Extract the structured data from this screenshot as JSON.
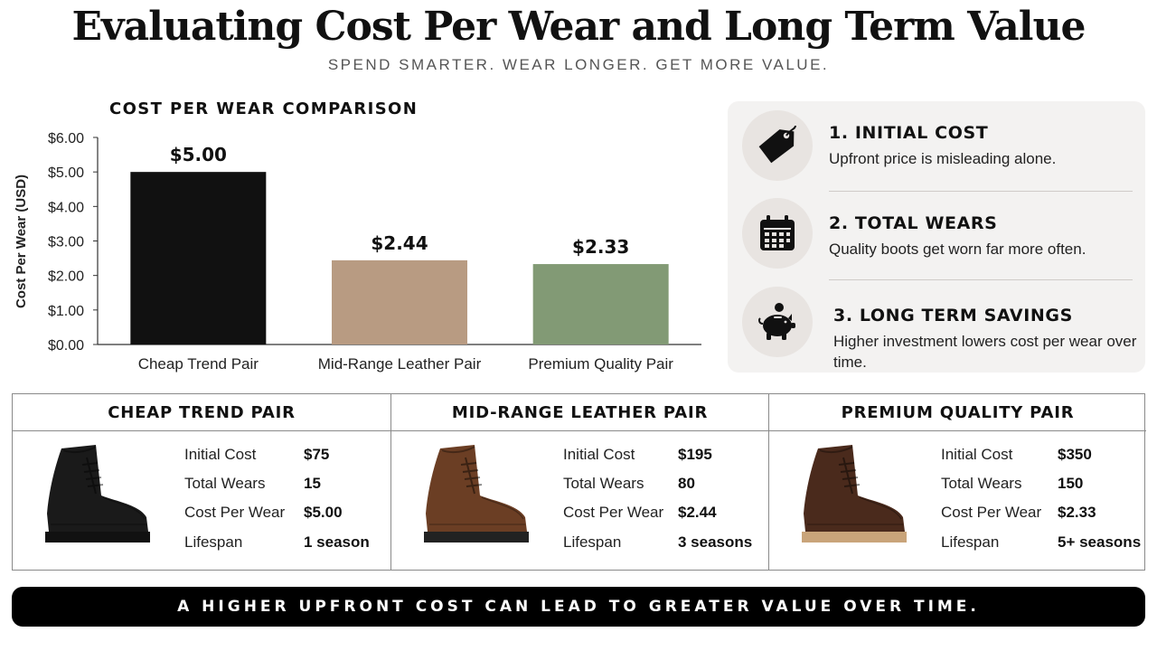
{
  "header": {
    "title": "Evaluating Cost Per Wear and Long Term Value",
    "subtitle": "SPEND SMARTER. WEAR LONGER. GET MORE VALUE."
  },
  "chart_data": {
    "type": "bar",
    "title": "COST PER WEAR COMPARISON",
    "ylabel": "Cost Per Wear (USD)",
    "xlabel": "",
    "categories": [
      "Cheap Trend Pair",
      "Mid-Range Leather Pair",
      "Premium Quality Pair"
    ],
    "values": [
      5.0,
      2.44,
      2.33
    ],
    "value_labels": [
      "$5.00",
      "$2.44",
      "$2.33"
    ],
    "colors": [
      "#111111",
      "#b89b82",
      "#829a75"
    ],
    "ylim": [
      0,
      6
    ],
    "yticks": [
      0,
      1,
      2,
      3,
      4,
      5,
      6
    ],
    "ytick_labels": [
      "$0.00",
      "$1.00",
      "$2.00",
      "$3.00",
      "$4.00",
      "$5.00",
      "$6.00"
    ],
    "grid": false,
    "legend": "none"
  },
  "factors": [
    {
      "icon": "price-tag-icon",
      "title": "1. INITIAL COST",
      "desc": "Upfront price is misleading alone."
    },
    {
      "icon": "calendar-icon",
      "title": "2. TOTAL WEARS",
      "desc": "Quality boots get worn far more often."
    },
    {
      "icon": "piggy-bank-icon",
      "title": "3. LONG TERM SAVINGS",
      "desc": "Higher investment lowers cost per wear over time."
    }
  ],
  "comparison": [
    {
      "name": "CHEAP TREND PAIR",
      "header_color": "#d9d9d9",
      "boot_color": "#1a1a1a",
      "sole_color": "#111111",
      "rows": [
        {
          "label": "Initial Cost",
          "value": "$75"
        },
        {
          "label": "Total Wears",
          "value": "15"
        },
        {
          "label": "Cost Per Wear",
          "value": "$5.00"
        },
        {
          "label": "Lifespan",
          "value": "1 season"
        }
      ]
    },
    {
      "name": "MID-RANGE LEATHER PAIR",
      "header_color": "#e6d6c6",
      "boot_color": "#6b3e24",
      "sole_color": "#222222",
      "rows": [
        {
          "label": "Initial Cost",
          "value": "$195"
        },
        {
          "label": "Total Wears",
          "value": "80"
        },
        {
          "label": "Cost Per Wear",
          "value": "$2.44"
        },
        {
          "label": "Lifespan",
          "value": "3 seasons"
        }
      ]
    },
    {
      "name": "PREMIUM QUALITY PAIR",
      "header_color": "#cdd8c4",
      "boot_color": "#4a2a1c",
      "sole_color": "#c9a47a",
      "rows": [
        {
          "label": "Initial Cost",
          "value": "$350"
        },
        {
          "label": "Total Wears",
          "value": "150"
        },
        {
          "label": "Cost Per Wear",
          "value": "$2.33"
        },
        {
          "label": "Lifespan",
          "value": "5+ seasons"
        }
      ]
    }
  ],
  "footer": {
    "text": "A HIGHER UPFRONT COST CAN LEAD TO GREATER VALUE OVER TIME."
  }
}
